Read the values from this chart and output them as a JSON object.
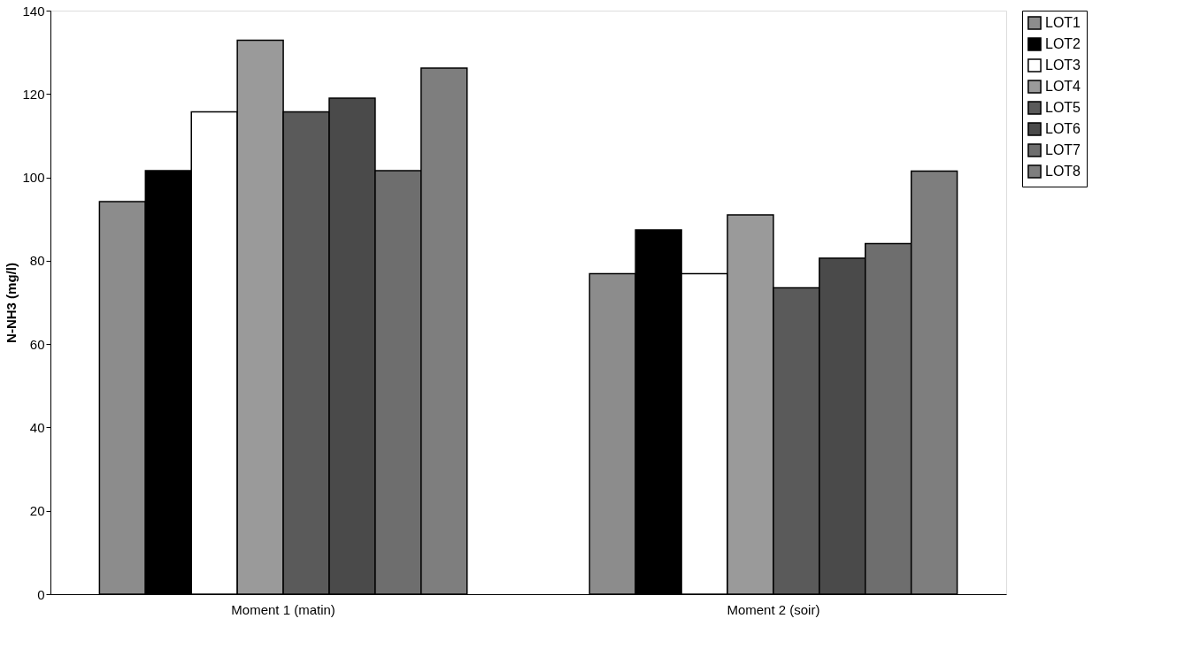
{
  "chart_data": {
    "type": "bar",
    "ylabel": "N-NH3 (mg/l)",
    "categories": [
      "Moment 1 (matin)",
      "Moment 2 (soir)"
    ],
    "series": [
      {
        "name": "LOT1",
        "color": "#8c8c8c",
        "values": [
          94.2,
          76.9
        ]
      },
      {
        "name": "LOT2",
        "color": "#000000",
        "values": [
          101.6,
          87.4
        ]
      },
      {
        "name": "LOT3",
        "color": "#ffffff",
        "values": [
          115.7,
          76.9
        ]
      },
      {
        "name": "LOT4",
        "color": "#9a9a9a",
        "values": [
          132.9,
          91.0
        ]
      },
      {
        "name": "LOT5",
        "color": "#5a5a5a",
        "values": [
          115.7,
          73.5
        ]
      },
      {
        "name": "LOT6",
        "color": "#4a4a4a",
        "values": [
          119.0,
          80.6
        ]
      },
      {
        "name": "LOT7",
        "color": "#6e6e6e",
        "values": [
          101.6,
          84.1
        ]
      },
      {
        "name": "LOT8",
        "color": "#7e7e7e",
        "values": [
          126.2,
          101.5
        ]
      }
    ],
    "ylim": [
      0,
      140
    ],
    "yticks": [
      0,
      20,
      40,
      60,
      80,
      100,
      120,
      140
    ],
    "grid": false,
    "legend": "right"
  }
}
